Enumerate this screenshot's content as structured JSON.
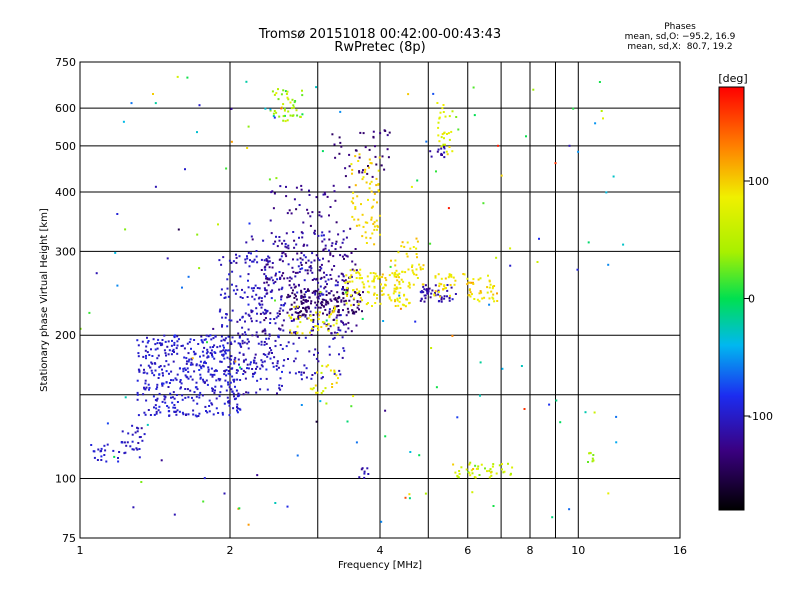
{
  "chart_data": {
    "type": "scatter",
    "title": "Tromsø 20151018 00:42:00-00:43:43",
    "subtitle": "RwPretec (8p)",
    "xlabel": "Frequency [MHz]",
    "ylabel": "Stationary phase Virtual Height [km]",
    "x_scale": "log",
    "y_scale": "log",
    "xlim": [
      1,
      16
    ],
    "ylim": [
      75,
      750
    ],
    "x_ticks": [
      1,
      2,
      4,
      6,
      8,
      10,
      16
    ],
    "x_minor_gridlines": [
      3,
      5,
      7,
      9
    ],
    "y_ticks": [
      75,
      100,
      200,
      300,
      400,
      500,
      600,
      750
    ],
    "y_minor_gridlines": [
      150
    ],
    "grid": true,
    "stats": {
      "header": "Phases",
      "line_o": "mean, sd,O: −95.2, 16.9",
      "line_x": "mean, sd,X:  80.7, 19.2"
    },
    "colorbar": {
      "label": "[deg]",
      "range": [
        -180,
        180
      ],
      "ticks": [
        100,
        0,
        -100
      ]
    },
    "clusters": [
      {
        "x": [
          1.3,
          2.1
        ],
        "y": [
          135,
          200
        ],
        "n": 420,
        "phase": -100,
        "phase_sd": 12
      },
      {
        "x": [
          1.9,
          2.6
        ],
        "y": [
          150,
          300
        ],
        "n": 180,
        "phase": -105,
        "phase_sd": 14
      },
      {
        "x": [
          2.1,
          3.4
        ],
        "y": [
          160,
          330
        ],
        "n": 260,
        "phase": -108,
        "phase_sd": 15
      },
      {
        "x": [
          2.3,
          3.6
        ],
        "y": [
          200,
          320
        ],
        "n": 140,
        "phase": -130,
        "phase_sd": 15
      },
      {
        "x": [
          2.4,
          3.5
        ],
        "y": [
          250,
          420
        ],
        "n": 90,
        "phase": -125,
        "phase_sd": 12
      },
      {
        "x": [
          2.6,
          3.7
        ],
        "y": [
          220,
          250
        ],
        "n": 140,
        "phase": -140,
        "phase_sd": 10
      },
      {
        "x": [
          3.2,
          4.2
        ],
        "y": [
          430,
          540
        ],
        "n": 40,
        "phase": -135,
        "phase_sd": 12
      },
      {
        "x": [
          2.4,
          2.8
        ],
        "y": [
          560,
          660
        ],
        "n": 45,
        "phase": 40,
        "phase_sd": 40
      },
      {
        "x": [
          2.6,
          3.3
        ],
        "y": [
          200,
          230
        ],
        "n": 45,
        "phase": 85,
        "phase_sd": 20
      },
      {
        "x": [
          3.5,
          4.0
        ],
        "y": [
          310,
          480
        ],
        "n": 70,
        "phase": 95,
        "phase_sd": 12
      },
      {
        "x": [
          3.4,
          4.6
        ],
        "y": [
          230,
          275
        ],
        "n": 130,
        "phase": 88,
        "phase_sd": 14
      },
      {
        "x": [
          4.1,
          4.9
        ],
        "y": [
          250,
          320
        ],
        "n": 40,
        "phase": 92,
        "phase_sd": 15
      },
      {
        "x": [
          4.8,
          5.7
        ],
        "y": [
          235,
          255
        ],
        "n": 50,
        "phase": -115,
        "phase_sd": 14
      },
      {
        "x": [
          5.1,
          5.7
        ],
        "y": [
          240,
          270
        ],
        "n": 30,
        "phase": 90,
        "phase_sd": 15
      },
      {
        "x": [
          5.8,
          6.9
        ],
        "y": [
          235,
          270
        ],
        "n": 45,
        "phase": 90,
        "phase_sd": 25
      },
      {
        "x": [
          5.2,
          5.6
        ],
        "y": [
          470,
          640
        ],
        "n": 30,
        "phase": 75,
        "phase_sd": 30
      },
      {
        "x": [
          5.0,
          5.4
        ],
        "y": [
          470,
          500
        ],
        "n": 12,
        "phase": -115,
        "phase_sd": 10
      },
      {
        "x": [
          2.9,
          3.3
        ],
        "y": [
          150,
          175
        ],
        "n": 22,
        "phase": 80,
        "phase_sd": 25
      },
      {
        "x": [
          5.6,
          7.4
        ],
        "y": [
          100,
          108
        ],
        "n": 45,
        "phase": 60,
        "phase_sd": 40
      },
      {
        "x": [
          3.6,
          3.8
        ],
        "y": [
          100,
          106
        ],
        "n": 8,
        "phase": -110,
        "phase_sd": 10
      },
      {
        "x": [
          1.2,
          1.35
        ],
        "y": [
          110,
          130
        ],
        "n": 30,
        "phase": -105,
        "phase_sd": 10
      },
      {
        "x": [
          1.05,
          1.2
        ],
        "y": [
          108,
          118
        ],
        "n": 20,
        "phase": -100,
        "phase_sd": 10
      },
      {
        "x": [
          10.4,
          10.8
        ],
        "y": [
          108,
          114
        ],
        "n": 8,
        "phase": 40,
        "phase_sd": 20
      },
      {
        "x": [
          1.0,
          12.0
        ],
        "y": [
          80,
          700
        ],
        "n": 140,
        "phase": 0,
        "phase_sd": 120
      }
    ],
    "isolated_points": [
      {
        "x": 1.42,
        "y": 410,
        "phase": -110
      },
      {
        "x": 1.08,
        "y": 270,
        "phase": -110
      },
      {
        "x": 1.5,
        "y": 290,
        "phase": -110
      },
      {
        "x": 1.28,
        "y": 87,
        "phase": -110
      },
      {
        "x": 1.55,
        "y": 84,
        "phase": -110
      },
      {
        "x": 1.95,
        "y": 93,
        "phase": -110
      },
      {
        "x": 2.18,
        "y": 80,
        "phase": 120
      },
      {
        "x": 9.0,
        "y": 460,
        "phase": 160
      },
      {
        "x": 9.6,
        "y": 500,
        "phase": -110
      },
      {
        "x": 6.9,
        "y": 500,
        "phase": 170
      },
      {
        "x": 5.5,
        "y": 370,
        "phase": 170
      },
      {
        "x": 12.3,
        "y": 310,
        "phase": -30
      },
      {
        "x": 7.8,
        "y": 140,
        "phase": 160
      },
      {
        "x": 7.3,
        "y": 280,
        "phase": -100
      },
      {
        "x": 6.2,
        "y": 580,
        "phase": 0
      }
    ]
  }
}
